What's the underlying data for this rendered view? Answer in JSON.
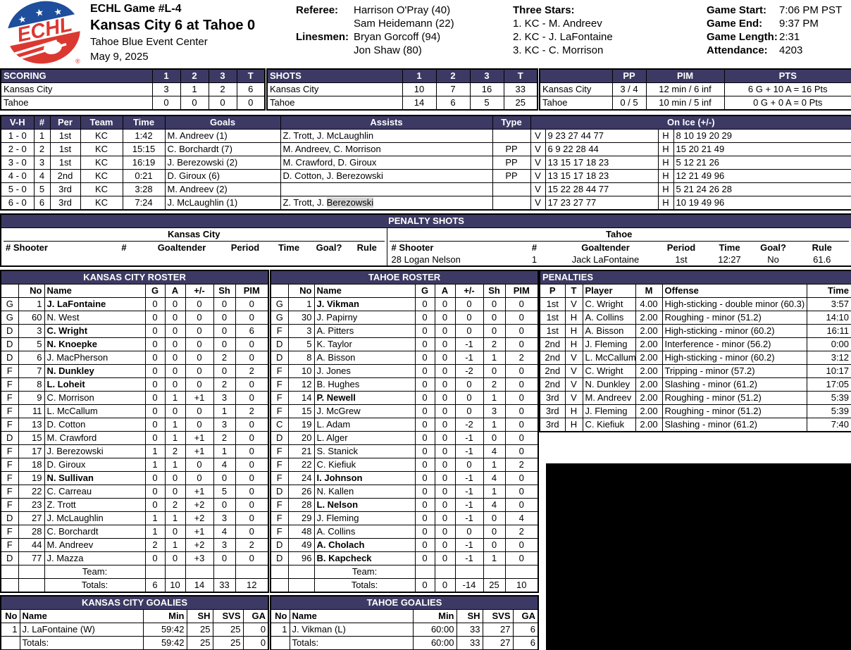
{
  "colors": {
    "header_bar": "#3C3A64",
    "highlight": "#D6D6D6",
    "logo_blue": "#1E4E9C",
    "logo_red": "#DC3832",
    "redacted_box": "#000000"
  },
  "header": {
    "logo_text": "ECHL",
    "logo_reg": "®",
    "game_label": "ECHL Game #L-4",
    "matchup": "Kansas City 6 at Tahoe 0",
    "venue": "Tahoe Blue Event Center",
    "date": "May 9, 2025",
    "referee_label": "Referee:",
    "referees": [
      "Harrison O'Pray (40)",
      "Sam Heidemann (22)"
    ],
    "linesmen_label": "Linesmen:",
    "linesmen": [
      "Bryan Gorcoff (94)",
      "Jon Shaw (80)"
    ],
    "three_stars_label": "Three Stars:",
    "three_stars": [
      "1. KC - M. Andreev",
      "2. KC - J. LaFontaine",
      "3. KC - C. Morrison"
    ],
    "game_start_label": "Game Start:",
    "game_start": "7:06 PM PST",
    "game_end_label": "Game End:",
    "game_end": "9:37 PM",
    "game_length_label": "Game Length:",
    "game_length": "2:31",
    "attendance_label": "Attendance:",
    "attendance": "4203"
  },
  "scoring": {
    "title": "SCORING",
    "columns": [
      "1",
      "2",
      "3",
      "T"
    ],
    "rows": [
      [
        "Kansas City",
        "3",
        "1",
        "2",
        "6"
      ],
      [
        "Tahoe",
        "0",
        "0",
        "0",
        "0"
      ]
    ]
  },
  "shots": {
    "title": "SHOTS",
    "columns": [
      "1",
      "2",
      "3",
      "T"
    ],
    "rows": [
      [
        "Kansas City",
        "10",
        "7",
        "16",
        "33"
      ],
      [
        "Tahoe",
        "14",
        "6",
        "5",
        "25"
      ]
    ]
  },
  "special": {
    "columns": [
      "PP",
      "PIM",
      "PTS"
    ],
    "rows": [
      [
        "Kansas City",
        "3 / 4",
        "12 min / 6 inf",
        "6 G + 10 A = 16 Pts"
      ],
      [
        "Tahoe",
        "0 / 5",
        "10 min / 5 inf",
        "0 G + 0 A = 0 Pts"
      ]
    ]
  },
  "goals": {
    "columns": [
      "V-H",
      "#",
      "Per",
      "Team",
      "Time",
      "Goals",
      "Assists",
      "Type",
      "On Ice (+/-)"
    ],
    "v_label": "V",
    "h_label": "H",
    "rows": [
      {
        "vh": "1 - 0",
        "num": "1",
        "per": "1st",
        "team": "KC",
        "time": "1:42",
        "goal": "M. Andreev (1)",
        "assists": "Z. Trott, J. McLaughlin",
        "hl": "",
        "type": "",
        "v": "9 23 27 44 77",
        "h": "8 10 19 20 29"
      },
      {
        "vh": "2 - 0",
        "num": "2",
        "per": "1st",
        "team": "KC",
        "time": "15:15",
        "goal": "C. Borchardt (7)",
        "assists": "M. Andreev, C. Morrison",
        "hl": "",
        "type": "PP",
        "v": "6 9 22 28 44",
        "h": "15 20 21 49"
      },
      {
        "vh": "3 - 0",
        "num": "3",
        "per": "1st",
        "team": "KC",
        "time": "16:19",
        "goal": "J. Berezowski (2)",
        "assists": "M. Crawford, D. Giroux",
        "hl": "",
        "type": "PP",
        "v": "13 15 17 18 23",
        "h": "5 12 21 26"
      },
      {
        "vh": "4 - 0",
        "num": "4",
        "per": "2nd",
        "team": "KC",
        "time": "0:21",
        "goal": "D. Giroux (6)",
        "assists": "D. Cotton, J. Berezowski",
        "hl": "",
        "type": "PP",
        "v": "13 15 17 18 23",
        "h": "12 21 49 96"
      },
      {
        "vh": "5 - 0",
        "num": "5",
        "per": "3rd",
        "team": "KC",
        "time": "3:28",
        "goal": "M. Andreev (2)",
        "assists": "",
        "hl": "",
        "type": "",
        "v": "15 22 28 44 77",
        "h": "5 21 24 26 28"
      },
      {
        "vh": "6 - 0",
        "num": "6",
        "per": "3rd",
        "team": "KC",
        "time": "7:24",
        "goal": "J. McLaughlin (1)",
        "assists": "Z. Trott, J. ",
        "hl": "Berezowski",
        "type": "",
        "v": "17 23 27 77",
        "h": "10 19 49 96"
      }
    ]
  },
  "penalty_shots": {
    "title": "PENALTY SHOTS",
    "kc_team": "Kansas City",
    "tahoe_team": "Tahoe",
    "columns": [
      "# Shooter",
      "#",
      "Goaltender",
      "Period",
      "Time",
      "Goal?",
      "Rule"
    ],
    "kc_rows": [],
    "tahoe_rows": [
      [
        "28 Logan Nelson",
        "1",
        "Jack LaFontaine",
        "1st",
        "12:27",
        "No",
        "61.6"
      ]
    ]
  },
  "roster_columns": [
    "No",
    "Name",
    "G",
    "A",
    "+/-",
    "Sh",
    "PIM"
  ],
  "rosters": {
    "kc": {
      "title": "KANSAS CITY ROSTER",
      "team_label": "Team:",
      "totals_label": "Totals:",
      "totals": [
        "6",
        "10",
        "14",
        "33",
        "12"
      ],
      "players": [
        {
          "pos": "G",
          "no": "1",
          "name": "J. LaFontaine",
          "bold": true,
          "g": "0",
          "a": "0",
          "pm": "0",
          "sh": "0",
          "pim": "0"
        },
        {
          "pos": "G",
          "no": "60",
          "name": "N. West",
          "bold": false,
          "g": "0",
          "a": "0",
          "pm": "0",
          "sh": "0",
          "pim": "0"
        },
        {
          "pos": "D",
          "no": "3",
          "name": "C. Wright",
          "bold": true,
          "g": "0",
          "a": "0",
          "pm": "0",
          "sh": "0",
          "pim": "6"
        },
        {
          "pos": "D",
          "no": "5",
          "name": "N. Knoepke",
          "bold": true,
          "g": "0",
          "a": "0",
          "pm": "0",
          "sh": "0",
          "pim": "0"
        },
        {
          "pos": "D",
          "no": "6",
          "name": "J. MacPherson",
          "bold": false,
          "g": "0",
          "a": "0",
          "pm": "0",
          "sh": "2",
          "pim": "0"
        },
        {
          "pos": "F",
          "no": "7",
          "name": "N. Dunkley",
          "bold": true,
          "g": "0",
          "a": "0",
          "pm": "0",
          "sh": "0",
          "pim": "2"
        },
        {
          "pos": "F",
          "no": "8",
          "name": "L. Loheit",
          "bold": true,
          "g": "0",
          "a": "0",
          "pm": "0",
          "sh": "2",
          "pim": "0"
        },
        {
          "pos": "F",
          "no": "9",
          "name": "C. Morrison",
          "bold": false,
          "g": "0",
          "a": "1",
          "pm": "+1",
          "sh": "3",
          "pim": "0"
        },
        {
          "pos": "F",
          "no": "11",
          "name": "L. McCallum",
          "bold": false,
          "g": "0",
          "a": "0",
          "pm": "0",
          "sh": "1",
          "pim": "2"
        },
        {
          "pos": "F",
          "no": "13",
          "name": "D. Cotton",
          "bold": false,
          "g": "0",
          "a": "1",
          "pm": "0",
          "sh": "3",
          "pim": "0"
        },
        {
          "pos": "D",
          "no": "15",
          "name": "M. Crawford",
          "bold": false,
          "g": "0",
          "a": "1",
          "pm": "+1",
          "sh": "2",
          "pim": "0"
        },
        {
          "pos": "F",
          "no": "17",
          "name": "J. Berezowski",
          "bold": false,
          "g": "1",
          "a": "2",
          "pm": "+1",
          "sh": "1",
          "pim": "0"
        },
        {
          "pos": "F",
          "no": "18",
          "name": "D. Giroux",
          "bold": false,
          "g": "1",
          "a": "1",
          "pm": "0",
          "sh": "4",
          "pim": "0"
        },
        {
          "pos": "F",
          "no": "19",
          "name": "N. Sullivan",
          "bold": true,
          "g": "0",
          "a": "0",
          "pm": "0",
          "sh": "0",
          "pim": "0"
        },
        {
          "pos": "F",
          "no": "22",
          "name": "C. Carreau",
          "bold": false,
          "g": "0",
          "a": "0",
          "pm": "+1",
          "sh": "5",
          "pim": "0"
        },
        {
          "pos": "F",
          "no": "23",
          "name": "Z. Trott",
          "bold": false,
          "g": "0",
          "a": "2",
          "pm": "+2",
          "sh": "0",
          "pim": "0"
        },
        {
          "pos": "D",
          "no": "27",
          "name": "J. McLaughlin",
          "bold": false,
          "g": "1",
          "a": "1",
          "pm": "+2",
          "sh": "3",
          "pim": "0"
        },
        {
          "pos": "F",
          "no": "28",
          "name": "C. Borchardt",
          "bold": false,
          "g": "1",
          "a": "0",
          "pm": "+1",
          "sh": "4",
          "pim": "0"
        },
        {
          "pos": "F",
          "no": "44",
          "name": "M. Andreev",
          "bold": false,
          "g": "2",
          "a": "1",
          "pm": "+2",
          "sh": "3",
          "pim": "2"
        },
        {
          "pos": "D",
          "no": "77",
          "name": "J. Mazza",
          "bold": false,
          "g": "0",
          "a": "0",
          "pm": "+3",
          "sh": "0",
          "pim": "0"
        }
      ]
    },
    "tahoe": {
      "title": "TAHOE ROSTER",
      "team_label": "Team:",
      "totals_label": "Totals:",
      "totals": [
        "0",
        "0",
        "-14",
        "25",
        "10"
      ],
      "players": [
        {
          "pos": "G",
          "no": "1",
          "name": "J. Vikman",
          "bold": true,
          "g": "0",
          "a": "0",
          "pm": "0",
          "sh": "0",
          "pim": "0"
        },
        {
          "pos": "G",
          "no": "30",
          "name": "J. Papirny",
          "bold": false,
          "g": "0",
          "a": "0",
          "pm": "0",
          "sh": "0",
          "pim": "0"
        },
        {
          "pos": "F",
          "no": "3",
          "name": "A. Pitters",
          "bold": false,
          "g": "0",
          "a": "0",
          "pm": "0",
          "sh": "0",
          "pim": "0"
        },
        {
          "pos": "D",
          "no": "5",
          "name": "K. Taylor",
          "bold": false,
          "g": "0",
          "a": "0",
          "pm": "-1",
          "sh": "2",
          "pim": "0"
        },
        {
          "pos": "D",
          "no": "8",
          "name": "A. Bisson",
          "bold": false,
          "g": "0",
          "a": "0",
          "pm": "-1",
          "sh": "1",
          "pim": "2"
        },
        {
          "pos": "F",
          "no": "10",
          "name": "J. Jones",
          "bold": false,
          "g": "0",
          "a": "0",
          "pm": "-2",
          "sh": "0",
          "pim": "0"
        },
        {
          "pos": "F",
          "no": "12",
          "name": "B. Hughes",
          "bold": false,
          "g": "0",
          "a": "0",
          "pm": "0",
          "sh": "2",
          "pim": "0"
        },
        {
          "pos": "F",
          "no": "14",
          "name": "P. Newell",
          "bold": true,
          "g": "0",
          "a": "0",
          "pm": "0",
          "sh": "1",
          "pim": "0"
        },
        {
          "pos": "F",
          "no": "15",
          "name": "J. McGrew",
          "bold": false,
          "g": "0",
          "a": "0",
          "pm": "0",
          "sh": "3",
          "pim": "0"
        },
        {
          "pos": "C",
          "no": "19",
          "name": "L. Adam",
          "bold": false,
          "g": "0",
          "a": "0",
          "pm": "-2",
          "sh": "1",
          "pim": "0"
        },
        {
          "pos": "D",
          "no": "20",
          "name": "L. Alger",
          "bold": false,
          "g": "0",
          "a": "0",
          "pm": "-1",
          "sh": "0",
          "pim": "0"
        },
        {
          "pos": "F",
          "no": "21",
          "name": "S. Stanick",
          "bold": false,
          "g": "0",
          "a": "0",
          "pm": "-1",
          "sh": "4",
          "pim": "0"
        },
        {
          "pos": "F",
          "no": "22",
          "name": "C. Kiefiuk",
          "bold": false,
          "g": "0",
          "a": "0",
          "pm": "0",
          "sh": "1",
          "pim": "2"
        },
        {
          "pos": "F",
          "no": "24",
          "name": "I. Johnson",
          "bold": true,
          "g": "0",
          "a": "0",
          "pm": "-1",
          "sh": "4",
          "pim": "0"
        },
        {
          "pos": "D",
          "no": "26",
          "name": "N. Kallen",
          "bold": false,
          "g": "0",
          "a": "0",
          "pm": "-1",
          "sh": "1",
          "pim": "0"
        },
        {
          "pos": "F",
          "no": "28",
          "name": "L. Nelson",
          "bold": true,
          "g": "0",
          "a": "0",
          "pm": "-1",
          "sh": "4",
          "pim": "0"
        },
        {
          "pos": "F",
          "no": "29",
          "name": "J. Fleming",
          "bold": false,
          "g": "0",
          "a": "0",
          "pm": "-1",
          "sh": "0",
          "pim": "4"
        },
        {
          "pos": "F",
          "no": "48",
          "name": "A. Collins",
          "bold": false,
          "g": "0",
          "a": "0",
          "pm": "0",
          "sh": "0",
          "pim": "2"
        },
        {
          "pos": "D",
          "no": "49",
          "name": "A. Cholach",
          "bold": true,
          "g": "0",
          "a": "0",
          "pm": "-1",
          "sh": "0",
          "pim": "0"
        },
        {
          "pos": "D",
          "no": "96",
          "name": "B. Kapcheck",
          "bold": true,
          "g": "0",
          "a": "0",
          "pm": "-1",
          "sh": "1",
          "pim": "0"
        }
      ]
    }
  },
  "penalties": {
    "title": "PENALTIES",
    "columns": [
      "P",
      "T",
      "Player",
      "M",
      "Offense",
      "Time"
    ],
    "rows": [
      [
        "1st",
        "V",
        "C. Wright",
        "4.00",
        "High-sticking - double minor (60.3)",
        "3:57"
      ],
      [
        "1st",
        "H",
        "A. Collins",
        "2.00",
        "Roughing - minor (51.2)",
        "14:10"
      ],
      [
        "1st",
        "H",
        "A. Bisson",
        "2.00",
        "High-sticking - minor (60.2)",
        "16:11"
      ],
      [
        "2nd",
        "H",
        "J. Fleming",
        "2.00",
        "Interference - minor (56.2)",
        "0:00"
      ],
      [
        "2nd",
        "V",
        "L. McCallum",
        "2.00",
        "High-sticking - minor (60.2)",
        "3:12"
      ],
      [
        "2nd",
        "V",
        "C. Wright",
        "2.00",
        "Tripping - minor (57.2)",
        "10:17"
      ],
      [
        "2nd",
        "V",
        "N. Dunkley",
        "2.00",
        "Slashing - minor (61.2)",
        "17:05"
      ],
      [
        "3rd",
        "V",
        "M. Andreev",
        "2.00",
        "Roughing - minor (51.2)",
        "5:39"
      ],
      [
        "3rd",
        "H",
        "J. Fleming",
        "2.00",
        "Roughing - minor (51.2)",
        "5:39"
      ],
      [
        "3rd",
        "H",
        "C. Kiefiuk",
        "2.00",
        "Slashing - minor (61.2)",
        "7:40"
      ]
    ]
  },
  "goalie_columns": [
    "No",
    "Name",
    "Min",
    "SH",
    "SVS",
    "GA"
  ],
  "goalies": {
    "kc": {
      "title": "KANSAS CITY GOALIES",
      "rows": [
        [
          "1",
          "J. LaFontaine (W)",
          "59:42",
          "25",
          "25",
          "0"
        ],
        [
          "",
          "Totals:",
          "59:42",
          "25",
          "25",
          "0"
        ]
      ]
    },
    "tahoe": {
      "title": "TAHOE GOALIES",
      "rows": [
        [
          "1",
          "J. Vikman (L)",
          "60:00",
          "33",
          "27",
          "6"
        ],
        [
          "",
          "Totals:",
          "60:00",
          "33",
          "27",
          "6"
        ]
      ]
    }
  }
}
